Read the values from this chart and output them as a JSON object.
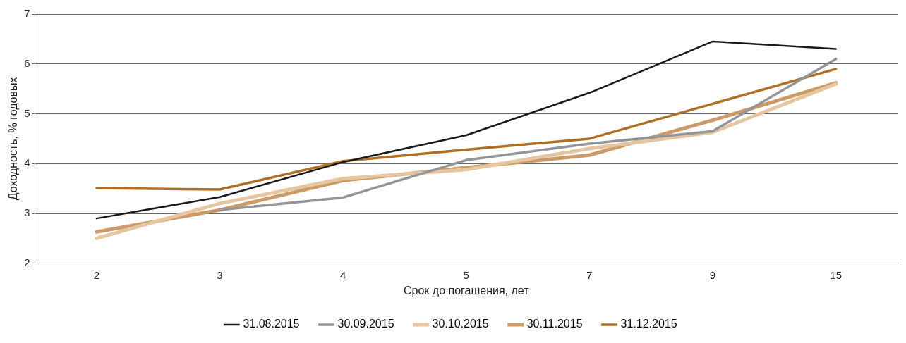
{
  "chart_data": {
    "type": "line",
    "xlabel": "Срок до погашения, лет",
    "ylabel": "Доходность, % годовых",
    "categories": [
      "2",
      "3",
      "4",
      "5",
      "7",
      "9",
      "15"
    ],
    "series": [
      {
        "name": "31.08.2015",
        "color": "#1a1a1a",
        "values": [
          2.9,
          3.33,
          4.03,
          4.57,
          5.42,
          6.45,
          6.3
        ]
      },
      {
        "name": "30.09.2015",
        "color": "#939598",
        "values": [
          null,
          3.07,
          3.32,
          4.07,
          4.4,
          4.65,
          6.1
        ]
      },
      {
        "name": "30.10.2015",
        "color": "#e6c6a0",
        "values": [
          2.5,
          3.2,
          3.7,
          3.88,
          4.3,
          4.63,
          5.6
        ]
      },
      {
        "name": "30.11.2015",
        "color": "#cc9a66",
        "values": [
          2.63,
          3.07,
          3.66,
          3.92,
          4.17,
          4.87,
          5.62
        ]
      },
      {
        "name": "31.12.2015",
        "color": "#b06f24",
        "values": [
          3.51,
          3.48,
          4.05,
          4.28,
          4.5,
          5.2,
          5.9
        ]
      }
    ],
    "ylim": [
      2,
      7
    ],
    "yticks": [
      2,
      3,
      4,
      5,
      6,
      7
    ],
    "grid": "y",
    "legend": "bottom",
    "marker": "none",
    "line_style": "solid"
  }
}
